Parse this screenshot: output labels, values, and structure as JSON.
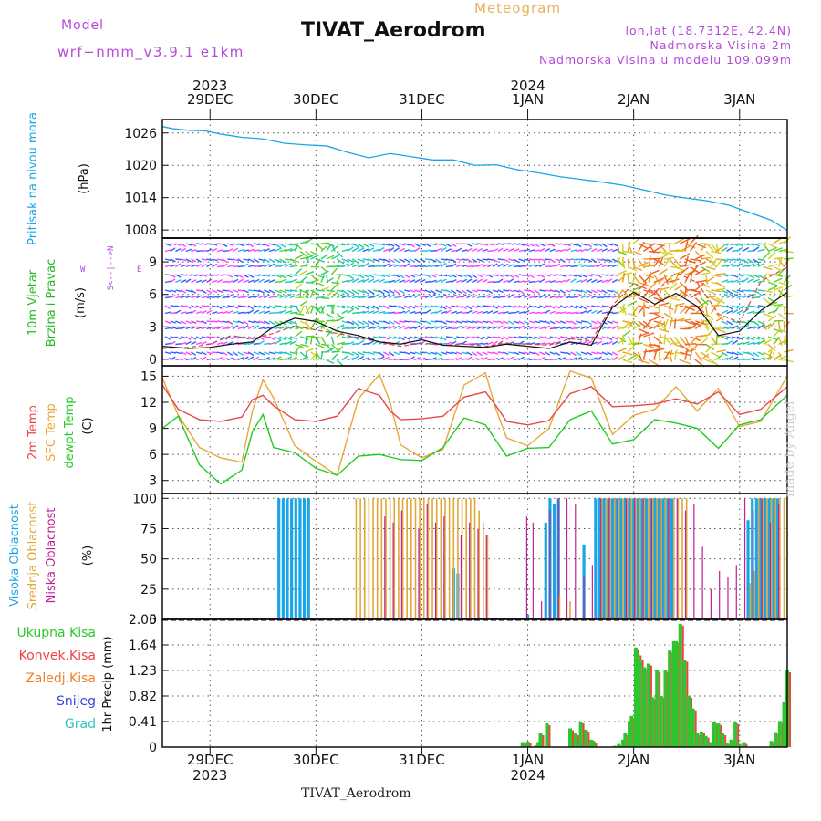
{
  "header": {
    "model_label": "Model",
    "model_name": "wrf−nmm_v3.9.1  e1km",
    "title": "TIVAT_Aerodrom",
    "subtitle": "Meteogram",
    "location": "lon,lat (18.7312E, 42.4N)",
    "elevation": "Nadmorska Visina 2m",
    "model_elevation": "Nadmorska Visina u modelu 109.099m"
  },
  "footer": {
    "station": "TIVAT_Aerodrom",
    "credit": "made by Angel"
  },
  "colors": {
    "pressure": "#1aa6e6",
    "wind_speed": "#111111",
    "gust": "#e44444",
    "temp2m": "#e84848",
    "sfc_temp": "#e8a838",
    "dewpoint": "#22cc22",
    "cloud_high": "#1aa6e6",
    "cloud_mid": "#e0a838",
    "cloud_low": "#c0209a",
    "precip_total": "#2ec62e",
    "precip_conv": "#ee4444",
    "precip_frozen": "#f08030",
    "precip_snow": "#4040e0",
    "precip_graupel": "#30c0c0"
  },
  "chart_data": {
    "type": "line",
    "top_axis": {
      "year_labels": [
        {
          "label": "2023",
          "x": 0.5
        },
        {
          "label": "2024",
          "x": 3.5
        }
      ],
      "day_labels": [
        "29DEC",
        "30DEC",
        "31DEC",
        "1JAN",
        "2JAN",
        "3JAN"
      ]
    },
    "bottom_axis": {
      "day_labels": [
        "29DEC",
        "30DEC",
        "31DEC",
        "1JAN",
        "2JAN",
        "3JAN"
      ],
      "year_labels": [
        {
          "label": "2023",
          "x": 0.5
        },
        {
          "label": "2024",
          "x": 3.5
        }
      ]
    },
    "x_range": [
      -0.45,
      5.45
    ],
    "pressure": {
      "ylabel_main": "Pritisak na nivou mora",
      "ylabel_unit": "(hPa)",
      "ylim": [
        1006.5,
        1028.5
      ],
      "ticks": [
        1008,
        1014,
        1020,
        1026
      ],
      "x": [
        -0.45,
        -0.35,
        -0.2,
        -0.05,
        0.1,
        0.3,
        0.5,
        0.7,
        0.9,
        1.1,
        1.3,
        1.5,
        1.7,
        1.9,
        2.1,
        2.3,
        2.5,
        2.7,
        2.9,
        3.1,
        3.3,
        3.5,
        3.7,
        3.9,
        4.1,
        4.3,
        4.5,
        4.7,
        4.9,
        5.1,
        5.3,
        5.45
      ],
      "values": [
        1027.2,
        1026.8,
        1026.5,
        1026.4,
        1025.8,
        1025.2,
        1024.9,
        1024.1,
        1023.8,
        1023.6,
        1022.4,
        1021.4,
        1022.2,
        1021.6,
        1021.0,
        1021.0,
        1020.0,
        1020.1,
        1019.2,
        1018.6,
        1017.9,
        1017.4,
        1016.9,
        1016.3,
        1015.4,
        1014.5,
        1013.9,
        1013.4,
        1012.6,
        1011.2,
        1009.8,
        1007.9
      ]
    },
    "wind": {
      "ylabel_main": "10m Vjetar",
      "ylabel_sub": "Brzina i Pravac",
      "ylabel_unit": "(m/s)",
      "compass": "N\n^\n|\nW <-|-> E\n|\nv\nS",
      "ylim": [
        -0.6,
        11.2
      ],
      "ticks": [
        0,
        3,
        6,
        9
      ],
      "x": [
        -0.45,
        -0.2,
        0.0,
        0.2,
        0.4,
        0.6,
        0.8,
        1.0,
        1.2,
        1.4,
        1.6,
        1.8,
        2.0,
        2.2,
        2.4,
        2.6,
        2.8,
        3.0,
        3.2,
        3.4,
        3.6,
        3.8,
        4.0,
        4.2,
        4.4,
        4.6,
        4.8,
        5.0,
        5.2,
        5.45
      ],
      "speed": [
        1.2,
        1.0,
        1.1,
        1.4,
        1.6,
        3.0,
        3.8,
        3.5,
        2.6,
        2.2,
        1.6,
        1.4,
        1.8,
        1.3,
        1.2,
        1.1,
        1.4,
        1.2,
        1.0,
        1.6,
        1.3,
        4.8,
        6.2,
        5.1,
        6.1,
        4.9,
        2.2,
        2.6,
        4.5,
        6.2
      ],
      "gust": [
        1.0,
        1.1,
        1.4,
        2.2,
        1.9,
        2.4,
        3.1,
        2.7,
        2.4,
        2.0,
        1.6,
        1.2,
        1.5,
        1.3,
        1.4,
        1.2,
        1.5,
        1.4,
        1.3,
        1.9,
        1.7,
        5.0,
        7.0,
        6.2,
        8.0,
        7.1,
        4.2,
        3.4,
        7.2,
        8.5
      ]
    },
    "temperature": {
      "ylabel_a": "2m Temp",
      "ylabel_b": "SFC Temp",
      "ylabel_c": "dewpt Temp",
      "ylabel_unit": "(C)",
      "ylim": [
        1.5,
        16.2
      ],
      "ticks": [
        3,
        6,
        9,
        12,
        15
      ],
      "x": [
        -0.45,
        -0.3,
        -0.1,
        0.1,
        0.3,
        0.4,
        0.5,
        0.6,
        0.8,
        1.0,
        1.2,
        1.4,
        1.6,
        1.7,
        1.8,
        2.0,
        2.2,
        2.4,
        2.6,
        2.7,
        2.8,
        3.0,
        3.2,
        3.4,
        3.6,
        3.8,
        4.0,
        4.2,
        4.4,
        4.6,
        4.8,
        5.0,
        5.2,
        5.45
      ],
      "temp2m": [
        14.0,
        11.2,
        10.0,
        9.8,
        10.3,
        12.3,
        12.8,
        11.6,
        10.0,
        9.8,
        10.4,
        13.6,
        12.8,
        11.0,
        10.0,
        10.1,
        10.4,
        12.6,
        13.2,
        11.6,
        9.8,
        9.4,
        9.9,
        13.0,
        13.8,
        11.5,
        11.6,
        11.8,
        12.4,
        11.8,
        13.2,
        10.6,
        11.2,
        13.8
      ],
      "sfc_temp": [
        14.8,
        10.5,
        6.8,
        5.6,
        5.1,
        11.0,
        14.6,
        12.5,
        7.0,
        5.2,
        3.6,
        12.4,
        15.2,
        12.0,
        7.1,
        5.6,
        6.6,
        14.0,
        15.4,
        11.2,
        7.9,
        7.0,
        9.0,
        15.6,
        14.8,
        8.3,
        10.5,
        11.2,
        13.8,
        11.0,
        13.6,
        9.2,
        9.8,
        15.0
      ],
      "dewpoint": [
        9.0,
        10.4,
        4.8,
        2.6,
        4.2,
        8.6,
        10.6,
        6.8,
        6.2,
        4.4,
        3.6,
        5.8,
        6.0,
        5.7,
        5.4,
        5.3,
        6.8,
        10.2,
        9.4,
        7.6,
        5.8,
        6.7,
        6.8,
        10.0,
        11.0,
        7.2,
        7.7,
        10.0,
        9.6,
        9.0,
        6.7,
        9.4,
        10.0,
        12.8
      ]
    },
    "clouds": {
      "ylabel_a": "Visoka Oblacnost",
      "ylabel_b": "Srednja Oblacnost",
      "ylabel_c": "Niska Oblacnost",
      "ylabel_unit": "(%)",
      "ylim": [
        0,
        104
      ],
      "ticks": [
        0,
        25,
        50,
        75,
        100
      ],
      "high_x": [
        0.65,
        0.69,
        0.73,
        0.77,
        0.81,
        0.85,
        0.89,
        0.93,
        2.3,
        2.34,
        3.0,
        3.17,
        3.21,
        3.25,
        3.29,
        3.53,
        3.64,
        3.68,
        3.72,
        3.76,
        3.8,
        3.84,
        3.88,
        3.92,
        3.96,
        4.0,
        4.04,
        4.08,
        4.12,
        4.16,
        4.2,
        4.24,
        4.28,
        4.32,
        4.36,
        5.08,
        5.12,
        5.16,
        5.2,
        5.24,
        5.28,
        5.32,
        5.36
      ],
      "high_values": [
        100,
        100,
        100,
        100,
        100,
        100,
        100,
        100,
        42,
        38,
        4,
        80,
        100,
        95,
        100,
        62,
        100,
        100,
        100,
        100,
        100,
        100,
        100,
        100,
        100,
        100,
        100,
        100,
        100,
        100,
        100,
        100,
        100,
        100,
        100,
        82,
        100,
        100,
        100,
        100,
        100,
        100,
        100
      ],
      "mid_x": [
        1.38,
        1.42,
        1.46,
        1.5,
        1.54,
        1.58,
        1.62,
        1.66,
        1.7,
        1.74,
        1.78,
        1.82,
        1.86,
        1.9,
        1.94,
        1.98,
        2.02,
        2.06,
        2.1,
        2.14,
        2.18,
        2.22,
        2.26,
        2.3,
        2.34,
        2.38,
        2.42,
        2.46,
        2.5,
        2.54,
        2.58,
        2.62,
        3.3,
        3.4,
        3.7,
        3.74,
        3.78,
        3.82,
        3.86,
        3.9,
        3.94,
        3.98,
        4.02,
        4.06,
        4.1,
        4.14,
        4.18,
        4.22,
        4.26,
        4.3,
        4.34,
        4.38,
        4.42,
        4.46,
        4.5,
        5.1,
        5.14,
        5.18,
        5.22,
        5.26,
        5.3,
        5.34,
        5.38,
        5.42
      ],
      "mid_values": [
        100,
        100,
        100,
        100,
        100,
        100,
        100,
        100,
        100,
        100,
        100,
        100,
        100,
        100,
        100,
        100,
        100,
        100,
        100,
        100,
        100,
        100,
        100,
        100,
        100,
        100,
        100,
        100,
        100,
        90,
        80,
        70,
        20,
        15,
        100,
        100,
        100,
        100,
        100,
        100,
        100,
        100,
        100,
        100,
        100,
        100,
        100,
        100,
        100,
        100,
        100,
        100,
        100,
        100,
        100,
        30,
        40,
        100,
        100,
        100,
        100,
        100,
        100,
        100
      ],
      "low_x": [
        1.65,
        1.73,
        1.81,
        1.97,
        2.05,
        2.13,
        2.21,
        2.37,
        2.45,
        2.53,
        2.61,
        2.99,
        3.05,
        3.13,
        3.21,
        3.29,
        3.37,
        3.45,
        3.53,
        3.61,
        3.69,
        3.77,
        3.85,
        3.93,
        4.01,
        4.09,
        4.17,
        4.25,
        4.33,
        4.41,
        4.49,
        4.57,
        4.65,
        4.73,
        4.81,
        4.89,
        4.97,
        5.05,
        5.13,
        5.21,
        5.29,
        5.37
      ],
      "low_values": [
        85,
        80,
        90,
        75,
        95,
        80,
        85,
        70,
        80,
        75,
        70,
        85,
        80,
        15,
        90,
        100,
        100,
        95,
        35,
        45,
        100,
        100,
        100,
        100,
        100,
        100,
        100,
        100,
        100,
        100,
        90,
        95,
        60,
        25,
        40,
        35,
        45,
        100,
        90,
        100,
        80,
        95
      ]
    },
    "precip": {
      "legend": [
        "Ukupna Kisa",
        "Konvek.Kisa",
        "Zaledj.Kisa",
        "Snijeg",
        "Grad"
      ],
      "ylabel_unit": "1hr Precip (mm)",
      "ylim": [
        0,
        2.05
      ],
      "ticks": [
        0,
        0.41,
        0.82,
        1.23,
        1.64,
        2.05
      ],
      "x": [
        2.95,
        3.0,
        3.08,
        3.1,
        3.12,
        3.18,
        3.4,
        3.45,
        3.47,
        3.5,
        3.55,
        3.6,
        3.62,
        3.82,
        3.86,
        3.9,
        3.92,
        3.96,
        3.98,
        4.02,
        4.04,
        4.06,
        4.1,
        4.14,
        4.18,
        4.22,
        4.26,
        4.3,
        4.34,
        4.38,
        4.4,
        4.44,
        4.48,
        4.52,
        4.56,
        4.6,
        4.64,
        4.68,
        4.72,
        4.76,
        4.8,
        4.84,
        4.88,
        4.92,
        4.96,
        5.0,
        5.04,
        5.3,
        5.34,
        5.38,
        5.42,
        5.45
      ],
      "values": [
        0.08,
        0.09,
        0.03,
        0.08,
        0.22,
        0.38,
        0.3,
        0.22,
        0.08,
        0.41,
        0.28,
        0.12,
        0.1,
        0.02,
        0.05,
        0.12,
        0.22,
        0.42,
        0.5,
        1.6,
        1.5,
        1.42,
        1.28,
        1.34,
        0.8,
        1.23,
        0.82,
        1.23,
        1.55,
        1.7,
        1.7,
        1.98,
        1.4,
        0.82,
        0.62,
        0.22,
        0.25,
        0.18,
        0.08,
        0.4,
        0.38,
        0.22,
        0.07,
        0.12,
        0.4,
        0.05,
        0.08,
        0.1,
        0.24,
        0.42,
        0.72,
        1.23
      ]
    }
  }
}
